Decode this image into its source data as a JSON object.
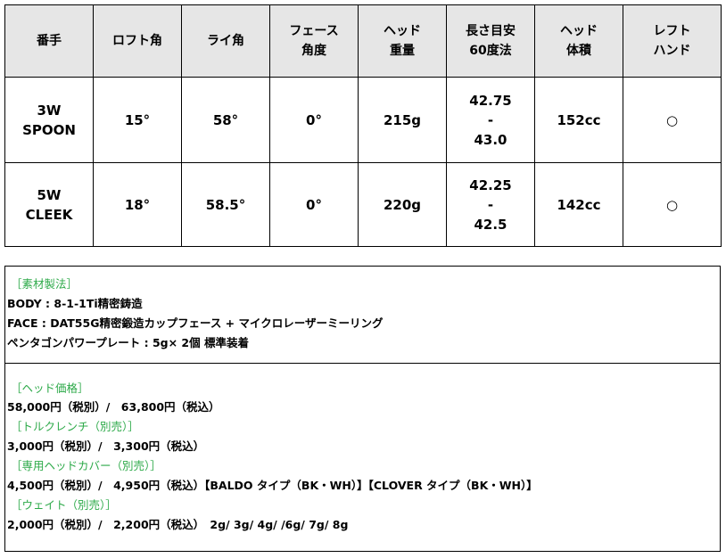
{
  "table": {
    "headers": [
      [
        "番手"
      ],
      [
        "ロフト角"
      ],
      [
        "ライ角"
      ],
      [
        "フェース",
        "角度"
      ],
      [
        "ヘッド",
        "重量"
      ],
      [
        "長さ目安",
        "60度法"
      ],
      [
        "ヘッド",
        "体積"
      ],
      [
        "レフト",
        "ハンド"
      ]
    ],
    "rows": [
      {
        "club": [
          "3W",
          "SPOON"
        ],
        "loft": "15°",
        "lie": "58°",
        "face": "0°",
        "weight": "215g",
        "length": [
          "42.75",
          "-",
          "43.0"
        ],
        "volume": "152cc",
        "left": "○"
      },
      {
        "club": [
          "5W",
          "CLEEK"
        ],
        "loft": "18°",
        "lie": "58.5°",
        "face": "0°",
        "weight": "220g",
        "length": [
          "42.25",
          "-",
          "42.5"
        ],
        "volume": "142cc",
        "left": "○"
      }
    ]
  },
  "materials": {
    "heading": "［素材製法］",
    "lines": [
      "BODY : 8-1-1Ti精密鋳造",
      "FACE : DAT55G精密鍛造カップフェース + マイクロレーザーミーリング",
      "ペンタゴンパワープレート : 5g× 2個 標準装着"
    ]
  },
  "prices": [
    {
      "heading": "［ヘッド価格］",
      "text": "58,000円（税別）/　63,800円（税込）"
    },
    {
      "heading": "［トルクレンチ（別売）］",
      "text": "3,000円（税別）/　3,300円（税込）"
    },
    {
      "heading": "［専用ヘッドカバー（別売）］",
      "text": "4,500円（税別）/　4,950円（税込）【BALDO タイプ（BK・WH）】【CLOVER タイプ（BK・WH）】"
    },
    {
      "heading": "［ウェイト（別売）］",
      "text": "2,000円（税別）/　2,200円（税込）　2g/ 3g/ 4g/ /6g/ 7g/ 8g"
    }
  ],
  "colors": {
    "heading_green": "#2eaa4a",
    "header_bg": "#e6e6e6"
  }
}
